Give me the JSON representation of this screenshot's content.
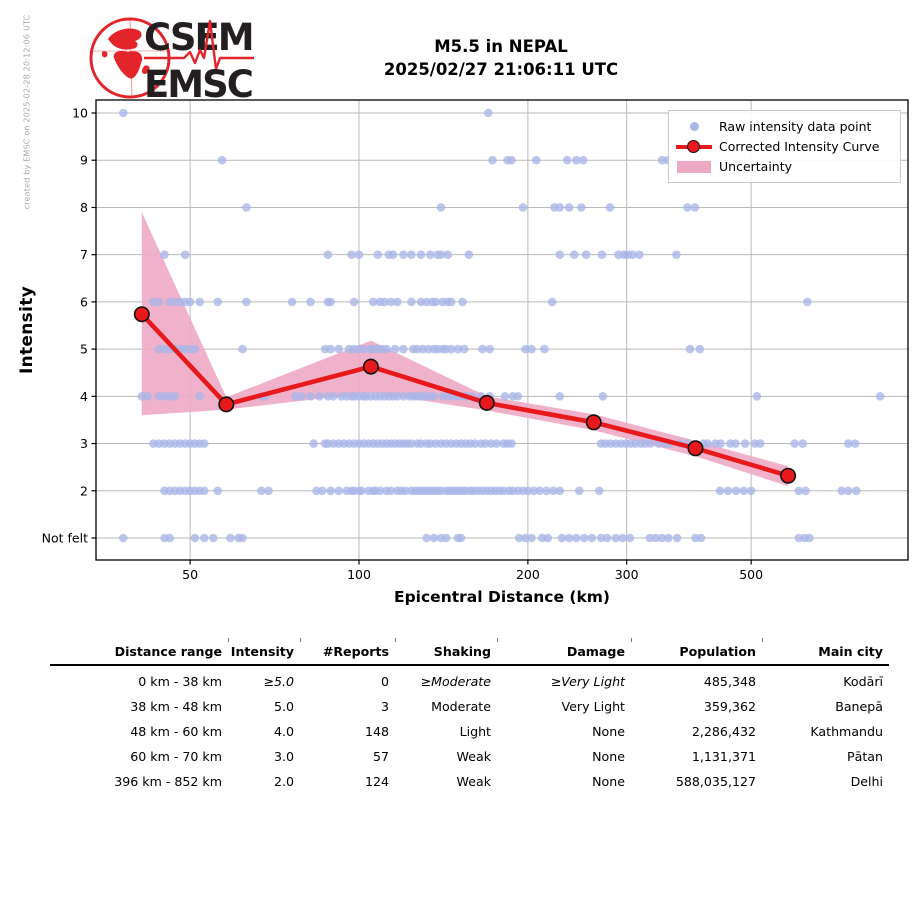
{
  "credit": "created by EMSC on 2025-02-28 20:12:06 UTC",
  "logo": {
    "line1": "CSEM",
    "line2": "EMSC"
  },
  "title": {
    "line1": "M5.5 in NEPAL",
    "line2": "2025/02/27 21:06:11 UTC"
  },
  "colors": {
    "raw_point": "#a9b6e8",
    "curve": "#e8191c",
    "band": "#eeaac5",
    "grid": "#b9b9b9",
    "spine": "#000000",
    "logo_red": "#e3242b",
    "logo_dark": "#231f20"
  },
  "chart_data": {
    "type": "scatter",
    "title": "M5.5 in NEPAL 2025/02/27 21:06:11 UTC",
    "xlabel": "Epicentral Distance (km)",
    "ylabel": "Intensity",
    "x_scale": "log",
    "xlim": [
      34,
      952
    ],
    "ylim": [
      0.53,
      10.28
    ],
    "grid": true,
    "x_ticks": [
      50,
      100,
      200,
      300,
      500
    ],
    "y_ticks": [
      {
        "value": 10,
        "label": "10"
      },
      {
        "value": 9,
        "label": "9"
      },
      {
        "value": 8,
        "label": "8"
      },
      {
        "value": 7,
        "label": "7"
      },
      {
        "value": 6,
        "label": "6"
      },
      {
        "value": 5,
        "label": "5"
      },
      {
        "value": 4,
        "label": "4"
      },
      {
        "value": 3,
        "label": "3"
      },
      {
        "value": 2,
        "label": "2"
      },
      {
        "value": 1,
        "label": "Not felt"
      }
    ],
    "legend": {
      "position": "upper right",
      "entries": [
        {
          "label": "Raw intensity data point"
        },
        {
          "label": "Corrected Intensity Curve"
        },
        {
          "label": "Uncertainty"
        }
      ]
    },
    "corrected_curve": {
      "name": "Corrected Intensity Curve",
      "distance_km": [
        41,
        58,
        105,
        169,
        262,
        398,
        582
      ],
      "intensity": [
        5.74,
        3.83,
        4.63,
        3.86,
        3.45,
        2.9,
        2.32
      ]
    },
    "uncertainty_band": {
      "name": "Uncertainty",
      "distance_km": [
        41,
        58,
        105,
        169,
        262,
        398,
        582
      ],
      "lower": [
        3.6,
        3.72,
        4.08,
        3.7,
        3.28,
        2.73,
        2.1
      ],
      "upper": [
        7.9,
        3.98,
        5.18,
        4.0,
        3.62,
        3.06,
        2.52
      ]
    },
    "raw_points_by_intensity": {
      "10": [
        38,
        170
      ],
      "9": [
        57,
        173,
        184,
        187,
        207,
        235,
        244,
        251,
        347,
        355
      ],
      "8": [
        63,
        140,
        196,
        223,
        228,
        237,
        249,
        280,
        385,
        397
      ],
      "7": [
        45,
        49,
        88,
        97,
        100,
        108,
        113,
        115,
        120,
        124,
        129,
        134,
        138,
        140,
        144,
        157,
        228,
        242,
        254,
        271,
        290,
        297,
        301,
        307,
        316,
        368
      ],
      "6": [
        43,
        44,
        46,
        47,
        48,
        49,
        50,
        52,
        56,
        63,
        76,
        82,
        88,
        89,
        98,
        106,
        109,
        111,
        114,
        117,
        124,
        129,
        132,
        135,
        137,
        141,
        144,
        146,
        153,
        221,
        630
      ],
      "5": [
        44,
        45,
        46,
        47,
        48,
        49,
        50,
        51,
        62,
        87,
        89,
        92,
        96,
        98,
        100,
        102,
        105,
        106,
        108,
        110,
        112,
        116,
        120,
        125,
        127,
        130,
        133,
        136,
        138,
        141,
        143,
        146,
        150,
        154,
        166,
        171,
        198,
        203,
        214,
        389,
        405
      ],
      "4": [
        41,
        42,
        44,
        45,
        46,
        47,
        52,
        67,
        68,
        77,
        79,
        82,
        85,
        88,
        90,
        93,
        95,
        97,
        98,
        100,
        102,
        103,
        105,
        107,
        109,
        111,
        113,
        115,
        117,
        120,
        123,
        125,
        127,
        129,
        131,
        134,
        136,
        141,
        144,
        146,
        149,
        151,
        154,
        156,
        159,
        165,
        171,
        182,
        188,
        192,
        228,
        272,
        512,
        849
      ],
      "3": [
        43,
        44,
        45,
        46,
        47,
        48,
        49,
        50,
        51,
        52,
        53,
        83,
        87,
        88,
        90,
        92,
        94,
        96,
        98,
        100,
        102,
        104,
        106,
        108,
        110,
        112,
        114,
        116,
        118,
        120,
        122,
        124,
        127,
        129,
        132,
        134,
        137,
        140,
        143,
        146,
        149,
        152,
        155,
        158,
        161,
        165,
        168,
        172,
        176,
        181,
        184,
        187,
        270,
        275,
        281,
        287,
        293,
        299,
        305,
        311,
        318,
        324,
        331,
        342,
        352,
        358,
        373,
        385,
        411,
        418,
        432,
        441,
        459,
        469,
        488,
        508,
        519,
        598,
        618,
        745,
        766
      ],
      "2": [
        45,
        46,
        47,
        48,
        49,
        50,
        51,
        52,
        53,
        56,
        67,
        69,
        84,
        86,
        89,
        92,
        95,
        97,
        98,
        100,
        101,
        104,
        106,
        107,
        109,
        112,
        114,
        117,
        119,
        121,
        124,
        126,
        128,
        130,
        132,
        134,
        136,
        138,
        140,
        143,
        145,
        147,
        149,
        151,
        153,
        155,
        158,
        160,
        163,
        166,
        169,
        172,
        175,
        178,
        181,
        185,
        188,
        192,
        196,
        200,
        205,
        210,
        216,
        222,
        228,
        247,
        268,
        440,
        455,
        470,
        485,
        500,
        608,
        625,
        725,
        745,
        770
      ],
      "1": [
        38,
        45,
        46,
        51,
        53,
        55,
        59,
        61,
        62,
        132,
        136,
        140,
        143,
        150,
        152,
        193,
        198,
        203,
        212,
        217,
        230,
        237,
        244,
        252,
        260,
        270,
        277,
        287,
        295,
        304,
        330,
        338,
        347,
        356,
        369,
        398,
        407,
        608,
        623,
        635
      ]
    }
  },
  "table": {
    "headers": [
      "Distance range",
      "Intensity",
      "#Reports",
      "Shaking",
      "Damage",
      "Population",
      "Main city"
    ],
    "rows": [
      {
        "cells": [
          "0 km -  38 km",
          "≥5.0",
          "0",
          "≥Moderate",
          "≥Very Light",
          "485,348",
          "Kodārī"
        ],
        "italic_cells": [
          1,
          3,
          4
        ]
      },
      {
        "cells": [
          "38 km -  48 km",
          "5.0",
          "3",
          "Moderate",
          "Very Light",
          "359,362",
          "Banepā"
        ],
        "italic_cells": []
      },
      {
        "cells": [
          "48 km -  60 km",
          "4.0",
          "148",
          "Light",
          "None",
          "2,286,432",
          "Kathmandu"
        ],
        "italic_cells": []
      },
      {
        "cells": [
          "60 km -  70 km",
          "3.0",
          "57",
          "Weak",
          "None",
          "1,131,371",
          "Pātan"
        ],
        "italic_cells": []
      },
      {
        "cells": [
          "396 km - 852 km",
          "2.0",
          "124",
          "Weak",
          "None",
          "588,035,127",
          "Delhi"
        ],
        "italic_cells": []
      }
    ]
  }
}
